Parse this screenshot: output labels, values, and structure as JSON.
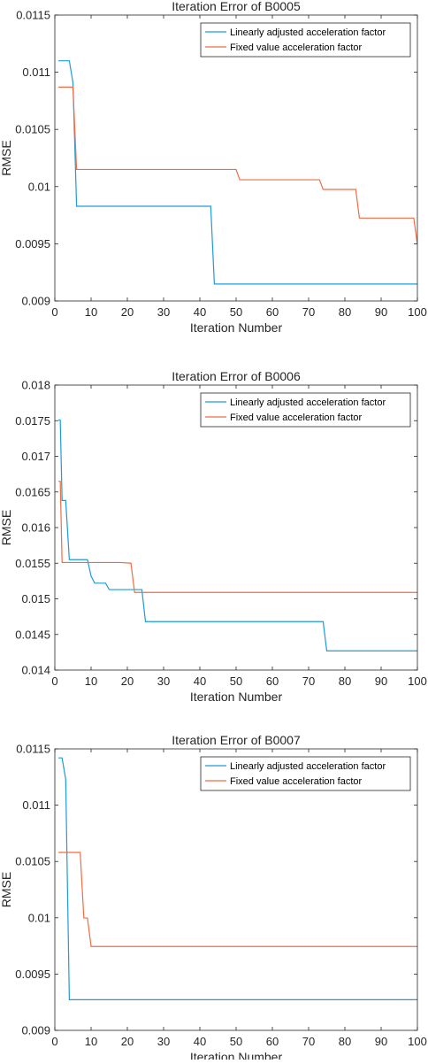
{
  "colors": {
    "linear": "#1f9bd7",
    "fixed": "#ef6c44",
    "axis": "#262626"
  },
  "chart_data": [
    {
      "type": "line",
      "title": "Iteration Error of B0005",
      "xlabel": "Iteration Number",
      "ylabel": "RMSE",
      "xlim": [
        0,
        100
      ],
      "ylim": [
        0.009,
        0.0115
      ],
      "xticks": [
        0,
        10,
        20,
        30,
        40,
        50,
        60,
        70,
        80,
        90,
        100
      ],
      "yticks": [
        0.009,
        0.0095,
        0.01,
        0.0105,
        0.011,
        0.0115
      ],
      "ytick_labels": [
        "0.009",
        "0.0095",
        "0.01",
        "0.0105",
        "0.011",
        "0.0115"
      ],
      "grid": false,
      "legend_position": "top-right",
      "series": [
        {
          "name": "Linearly adjusted acceleration factor",
          "color": "#1f9bd7",
          "x": [
            1,
            4,
            5,
            6,
            43,
            44,
            100
          ],
          "y": [
            0.0111,
            0.0111,
            0.01091,
            0.009828,
            0.009828,
            0.009148,
            0.009148
          ]
        },
        {
          "name": "Fixed value acceleration factor",
          "color": "#ef6c44",
          "x": [
            1,
            5,
            6,
            50,
            51,
            73,
            74,
            83,
            84,
            99,
            100
          ],
          "y": [
            0.01087,
            0.01087,
            0.01015,
            0.01015,
            0.01006,
            0.01006,
            0.009975,
            0.009975,
            0.009725,
            0.009725,
            0.009495
          ]
        }
      ]
    },
    {
      "type": "line",
      "title": "Iteration Error of B0006",
      "xlabel": "Iteration Number",
      "ylabel": "RMSE",
      "xlim": [
        0,
        100
      ],
      "ylim": [
        0.014,
        0.018
      ],
      "xticks": [
        0,
        10,
        20,
        30,
        40,
        50,
        60,
        70,
        80,
        90,
        100
      ],
      "yticks": [
        0.014,
        0.0145,
        0.015,
        0.0155,
        0.016,
        0.0165,
        0.017,
        0.0175,
        0.018
      ],
      "ytick_labels": [
        "0.014",
        "0.0145",
        "0.015",
        "0.0155",
        "0.016",
        "0.0165",
        "0.017",
        "0.0175",
        "0.018"
      ],
      "grid": false,
      "legend_position": "top-right",
      "series": [
        {
          "name": "Linearly adjusted acceleration factor",
          "color": "#1f9bd7",
          "x": [
            1,
            1.5,
            2,
            3,
            4,
            9,
            10,
            11,
            14,
            15,
            22,
            23,
            24,
            25,
            74,
            75,
            100
          ],
          "y": [
            0.01751,
            0.01751,
            0.01638,
            0.01638,
            0.01555,
            0.01555,
            0.01532,
            0.01522,
            0.01522,
            0.01513,
            0.01513,
            0.01513,
            0.01513,
            0.01468,
            0.01468,
            0.01427,
            0.01427
          ]
        },
        {
          "name": "Fixed value acceleration factor",
          "color": "#ef6c44",
          "x": [
            1,
            1.5,
            2,
            18,
            21,
            22,
            100
          ],
          "y": [
            0.01665,
            0.01665,
            0.01551,
            0.01551,
            0.0155,
            0.01509,
            0.01509
          ]
        }
      ]
    },
    {
      "type": "line",
      "title": "Iteration Error of B0007",
      "xlabel": "Iteration Number",
      "ylabel": "RMSE",
      "xlim": [
        0,
        100
      ],
      "ylim": [
        0.009,
        0.0115
      ],
      "xticks": [
        0,
        10,
        20,
        30,
        40,
        50,
        60,
        70,
        80,
        90,
        100
      ],
      "yticks": [
        0.009,
        0.0095,
        0.01,
        0.0105,
        0.011,
        0.0115
      ],
      "ytick_labels": [
        "0.009",
        "0.0095",
        "0.01",
        "0.0105",
        "0.011",
        "0.0115"
      ],
      "grid": false,
      "legend_position": "top-right",
      "series": [
        {
          "name": "Linearly adjusted acceleration factor",
          "color": "#1f9bd7",
          "x": [
            1,
            2,
            3,
            4,
            100
          ],
          "y": [
            0.01142,
            0.01142,
            0.01123,
            0.009272,
            0.009272
          ]
        },
        {
          "name": "Fixed value acceleration factor",
          "color": "#ef6c44",
          "x": [
            1,
            7,
            8,
            9,
            10,
            100
          ],
          "y": [
            0.01058,
            0.01058,
            0.009998,
            0.009998,
            0.009745,
            0.009745
          ]
        }
      ]
    }
  ]
}
